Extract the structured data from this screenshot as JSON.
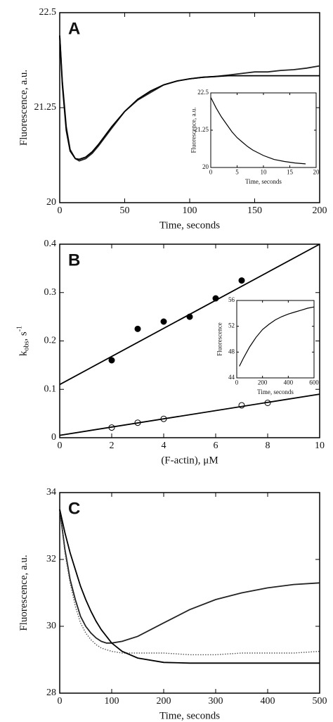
{
  "chart_data": [
    {
      "type": "line",
      "label": "A",
      "x_label": "Time, seconds",
      "y_label": "Fluorescence, a.u.",
      "xlim": [
        0,
        200
      ],
      "xticks": [
        0,
        50,
        100,
        150,
        200
      ],
      "ylim": [
        20,
        22.5
      ],
      "yticks": [
        20,
        21.25,
        22.5
      ],
      "series": [
        {
          "style": "line",
          "color": "#222",
          "x": [
            0,
            2,
            5,
            8,
            12,
            15,
            20,
            25,
            30,
            40,
            50,
            60,
            70,
            80,
            90,
            100,
            110,
            120,
            130,
            140,
            150,
            160,
            170,
            180,
            190,
            200
          ],
          "values": [
            22.2,
            21.6,
            21.0,
            20.7,
            20.58,
            20.55,
            20.58,
            20.65,
            20.75,
            20.98,
            21.2,
            21.35,
            21.45,
            21.55,
            21.6,
            21.63,
            21.65,
            21.66,
            21.68,
            21.7,
            21.72,
            21.72,
            21.74,
            21.75,
            21.77,
            21.8
          ]
        },
        {
          "style": "line",
          "color": "#000",
          "x": [
            0,
            2,
            5,
            8,
            12,
            15,
            20,
            25,
            30,
            40,
            50,
            60,
            70,
            80,
            90,
            100,
            110,
            120,
            130,
            140,
            150,
            160,
            170,
            180,
            190,
            200
          ],
          "values": [
            22.2,
            21.55,
            20.95,
            20.68,
            20.58,
            20.57,
            20.6,
            20.67,
            20.77,
            21.0,
            21.2,
            21.36,
            21.47,
            21.55,
            21.6,
            21.63,
            21.65,
            21.66,
            21.67,
            21.67,
            21.67,
            21.67,
            21.67,
            21.67,
            21.67,
            21.67
          ]
        }
      ]
    },
    {
      "type": "line",
      "x_label": "Time, seconds",
      "y_label": "Fluorescence, a.u.",
      "xlim": [
        0,
        20
      ],
      "xticks": [
        0,
        5,
        10,
        15,
        20
      ],
      "ylim": [
        20,
        22.5
      ],
      "yticks": [
        20,
        21.25,
        22.5
      ],
      "series": [
        {
          "style": "line",
          "color": "#000",
          "x": [
            0,
            1,
            2,
            3,
            4,
            5,
            6,
            7,
            8,
            10,
            12,
            14,
            16,
            18
          ],
          "values": [
            22.35,
            22.0,
            21.7,
            21.45,
            21.2,
            21.0,
            20.85,
            20.7,
            20.58,
            20.4,
            20.27,
            20.2,
            20.15,
            20.12
          ]
        }
      ]
    },
    {
      "type": "scatter",
      "label": "B",
      "x_label": "(F-actin), μM",
      "y_label": {
        "base": "k",
        "sub": "obs",
        "mid": ", s",
        "sup": "-1"
      },
      "xlim": [
        0,
        10
      ],
      "xticks": [
        0,
        2,
        4,
        6,
        8,
        10
      ],
      "ylim": [
        0,
        0.4
      ],
      "yticks": [
        0,
        0.1,
        0.2,
        0.3,
        0.4
      ],
      "series": [
        {
          "style": "filled-dots",
          "color": "#000",
          "x": [
            2,
            3,
            4,
            5,
            6,
            7
          ],
          "values": [
            0.16,
            0.225,
            0.24,
            0.25,
            0.288,
            0.325
          ]
        },
        {
          "style": "line",
          "color": "#000",
          "x": [
            0,
            10
          ],
          "values": [
            0.11,
            0.4
          ]
        },
        {
          "style": "open-dots",
          "color": "#000",
          "x": [
            2,
            3,
            4,
            7,
            8
          ],
          "values": [
            0.021,
            0.031,
            0.039,
            0.067,
            0.072
          ]
        },
        {
          "style": "line",
          "color": "#000",
          "x": [
            0,
            10
          ],
          "values": [
            0.005,
            0.09
          ]
        }
      ]
    },
    {
      "type": "line",
      "x_label": "Time, seconds",
      "y_label": "Fluorescence",
      "xlim": [
        0,
        600
      ],
      "xticks": [
        0,
        200,
        400,
        600
      ],
      "ylim": [
        44,
        56
      ],
      "yticks": [
        44,
        48,
        52,
        56
      ],
      "series": [
        {
          "style": "line",
          "color": "#000",
          "x": [
            20,
            50,
            100,
            150,
            200,
            250,
            300,
            350,
            400,
            450,
            500,
            550,
            600
          ],
          "values": [
            45.8,
            47,
            48.8,
            50.3,
            51.5,
            52.3,
            53,
            53.5,
            53.9,
            54.2,
            54.5,
            54.8,
            55
          ]
        }
      ]
    },
    {
      "type": "line",
      "label": "C",
      "x_label": "Time, seconds",
      "y_label": "Fluorescence, a.u.",
      "xlim": [
        0,
        500
      ],
      "xticks": [
        0,
        100,
        200,
        300,
        400,
        500
      ],
      "ylim": [
        28,
        34
      ],
      "yticks": [
        28,
        30,
        32,
        34
      ],
      "series": [
        {
          "style": "line",
          "color": "#222",
          "x": [
            0,
            10,
            20,
            30,
            40,
            50,
            60,
            70,
            80,
            90,
            100,
            120,
            150,
            200,
            250,
            300,
            350,
            400,
            450,
            500
          ],
          "values": [
            33.5,
            32.3,
            31.4,
            30.8,
            30.3,
            30,
            29.8,
            29.65,
            29.55,
            29.5,
            29.5,
            29.55,
            29.7,
            30.1,
            30.5,
            30.8,
            31.0,
            31.15,
            31.25,
            31.3
          ]
        },
        {
          "style": "dotted",
          "color": "#555",
          "x": [
            0,
            10,
            20,
            30,
            40,
            50,
            60,
            70,
            80,
            90,
            100,
            120,
            150,
            200,
            250,
            300,
            350,
            400,
            450,
            500
          ],
          "values": [
            33.5,
            32.2,
            31.3,
            30.6,
            30.1,
            29.8,
            29.6,
            29.45,
            29.35,
            29.3,
            29.25,
            29.2,
            29.2,
            29.2,
            29.15,
            29.15,
            29.2,
            29.2,
            29.2,
            29.25
          ]
        },
        {
          "style": "line",
          "color": "#000",
          "x": [
            0,
            10,
            20,
            30,
            40,
            50,
            60,
            70,
            80,
            90,
            100,
            120,
            150,
            200,
            250,
            300,
            350,
            400,
            450,
            500
          ],
          "values": [
            33.5,
            32.8,
            32.2,
            31.7,
            31.2,
            30.8,
            30.45,
            30.15,
            29.9,
            29.7,
            29.5,
            29.25,
            29.05,
            28.92,
            28.9,
            28.9,
            28.9,
            28.9,
            28.9,
            28.9
          ]
        }
      ]
    }
  ]
}
